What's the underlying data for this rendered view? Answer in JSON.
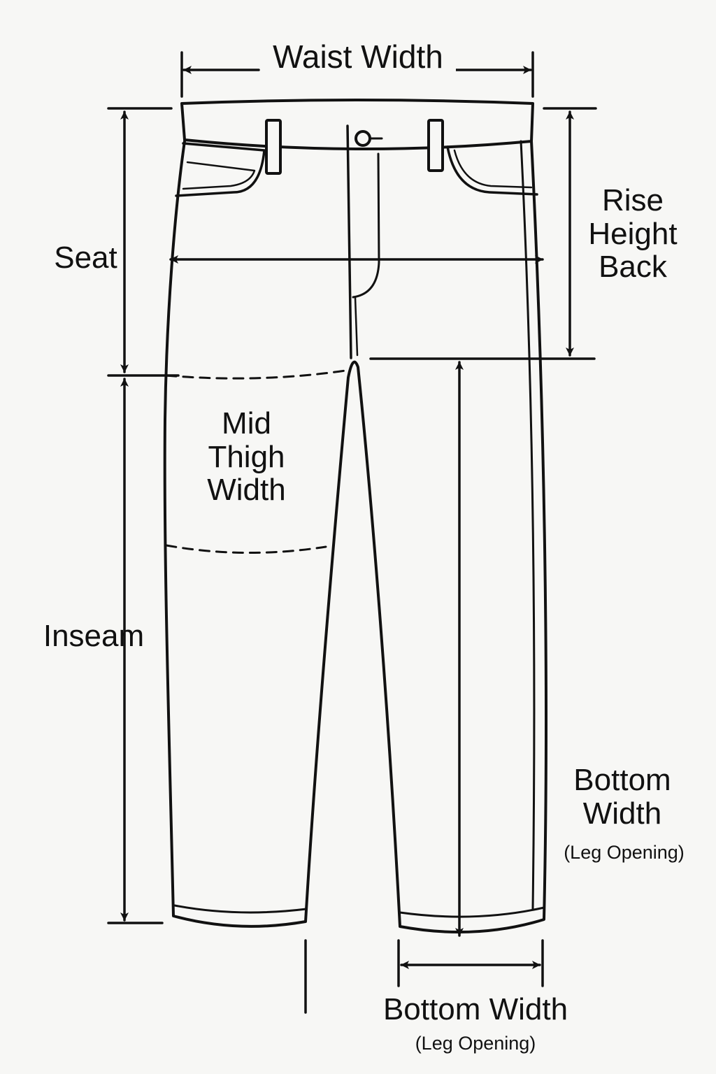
{
  "colors": {
    "background": "#f7f7f5",
    "ink": "#111111"
  },
  "labels": {
    "waist_width": "Waist Width",
    "seat": "Seat",
    "rise_line1": "Rise",
    "rise_line2": "Height",
    "rise_line3": "Back",
    "mid_thigh_line1": "Mid",
    "mid_thigh_line2": "Thigh",
    "mid_thigh_line3": "Width",
    "inseam": "Inseam",
    "bottom_width_side_line1": "Bottom",
    "bottom_width_side_line2": "Width",
    "bottom_width_side_sub": "(Leg Opening)",
    "bottom_width_line": "Bottom Width",
    "bottom_width_sub": "(Leg Opening)"
  }
}
